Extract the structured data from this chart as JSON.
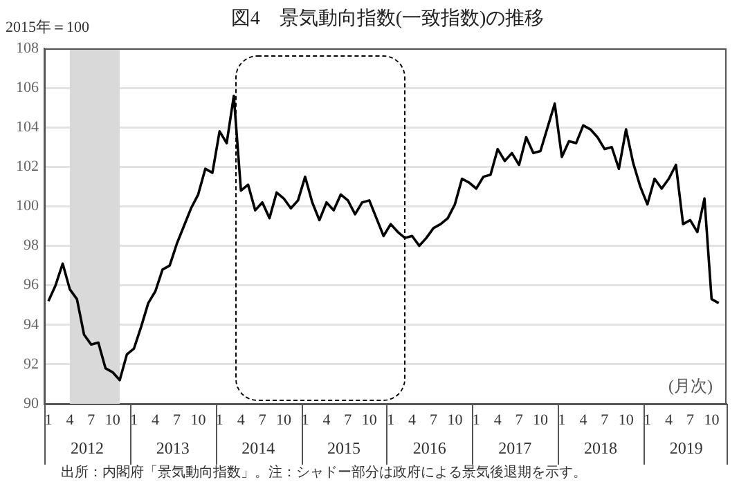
{
  "chart_data": {
    "type": "line",
    "title": "図4　景気動向指数(一致指数)の推移",
    "ylabel": "2015年＝100",
    "xlabel": "(月次)",
    "annotations": [
      "出所：内閣府「景気動向指数」。注：シャドー部分は政府による景気後退期を示す。"
    ],
    "x": [
      "2012-01",
      "2012-02",
      "2012-03",
      "2012-04",
      "2012-05",
      "2012-06",
      "2012-07",
      "2012-08",
      "2012-09",
      "2012-10",
      "2012-11",
      "2012-12",
      "2013-01",
      "2013-02",
      "2013-03",
      "2013-04",
      "2013-05",
      "2013-06",
      "2013-07",
      "2013-08",
      "2013-09",
      "2013-10",
      "2013-11",
      "2013-12",
      "2014-01",
      "2014-02",
      "2014-03",
      "2014-04",
      "2014-05",
      "2014-06",
      "2014-07",
      "2014-08",
      "2014-09",
      "2014-10",
      "2014-11",
      "2014-12",
      "2015-01",
      "2015-02",
      "2015-03",
      "2015-04",
      "2015-05",
      "2015-06",
      "2015-07",
      "2015-08",
      "2015-09",
      "2015-10",
      "2015-11",
      "2015-12",
      "2016-01",
      "2016-02",
      "2016-03",
      "2016-04",
      "2016-05",
      "2016-06",
      "2016-07",
      "2016-08",
      "2016-09",
      "2016-10",
      "2016-11",
      "2016-12",
      "2017-01",
      "2017-02",
      "2017-03",
      "2017-04",
      "2017-05",
      "2017-06",
      "2017-07",
      "2017-08",
      "2017-09",
      "2017-10",
      "2017-11",
      "2017-12",
      "2018-01",
      "2018-02",
      "2018-03",
      "2018-04",
      "2018-05",
      "2018-06",
      "2018-07",
      "2018-08",
      "2018-09",
      "2018-10",
      "2018-11",
      "2018-12",
      "2019-01",
      "2019-02",
      "2019-03",
      "2019-04",
      "2019-05",
      "2019-06",
      "2019-07",
      "2019-08",
      "2019-09",
      "2019-10",
      "2019-11"
    ],
    "series": [
      {
        "color": "#000000",
        "values": [
          95.2,
          96.0,
          97.1,
          95.8,
          95.3,
          93.5,
          93.0,
          93.1,
          91.8,
          91.6,
          91.2,
          92.5,
          92.8,
          93.9,
          95.1,
          95.7,
          96.8,
          97.0,
          98.1,
          99.0,
          99.9,
          100.6,
          101.9,
          101.7,
          103.8,
          103.2,
          105.6,
          100.8,
          101.1,
          99.8,
          100.2,
          99.4,
          100.7,
          100.4,
          99.9,
          100.3,
          101.5,
          100.2,
          99.3,
          100.2,
          99.8,
          100.6,
          100.3,
          99.6,
          100.2,
          100.3,
          99.4,
          98.5,
          99.1,
          98.7,
          98.4,
          98.5,
          98.0,
          98.4,
          98.9,
          99.1,
          99.4,
          100.1,
          101.4,
          101.2,
          100.9,
          101.5,
          101.6,
          102.9,
          102.3,
          102.7,
          102.1,
          103.5,
          102.7,
          102.8,
          104.0,
          105.2,
          102.5,
          103.3,
          103.2,
          104.1,
          103.9,
          103.5,
          102.9,
          103.0,
          101.9,
          103.9,
          102.2,
          101.0,
          100.1,
          101.4,
          100.9,
          101.4,
          102.1,
          99.1,
          99.3,
          98.7,
          100.4,
          95.3,
          95.1
        ]
      }
    ],
    "xlim": [
      "2011-12-14",
      "2019-12-04"
    ],
    "x2lim": [
      "2011-12-14",
      "2019-12-04"
    ],
    "x2ticks": [
      {
        "value": "2012-06-14",
        "label": "2012"
      },
      {
        "value": "2013-06-14",
        "label": "2013"
      },
      {
        "value": "2014-06-14",
        "label": "2014"
      },
      {
        "value": "2015-06-14",
        "label": "2015"
      },
      {
        "value": "2016-06-14",
        "label": "2016"
      },
      {
        "value": "2017-06-14",
        "label": "2017"
      },
      {
        "value": "2018-06-14",
        "label": "2018"
      },
      {
        "value": "2019-06-14",
        "label": "2019"
      }
    ],
    "xticks": [
      {
        "value": "2012-01",
        "label": "1"
      },
      {
        "value": "2012-04",
        "label": "4"
      },
      {
        "value": "2012-07",
        "label": "7"
      },
      {
        "value": "2012-10",
        "label": "10"
      },
      {
        "value": "2013-01",
        "label": "1"
      },
      {
        "value": "2013-04",
        "label": "4"
      },
      {
        "value": "2013-07",
        "label": "7"
      },
      {
        "value": "2013-10",
        "label": "10"
      },
      {
        "value": "2014-01",
        "label": "1"
      },
      {
        "value": "2014-04",
        "label": "4"
      },
      {
        "value": "2014-07",
        "label": "7"
      },
      {
        "value": "2014-10",
        "label": "10"
      },
      {
        "value": "2015-01",
        "label": "1"
      },
      {
        "value": "2015-04",
        "label": "4"
      },
      {
        "value": "2015-07",
        "label": "7"
      },
      {
        "value": "2015-10",
        "label": "10"
      },
      {
        "value": "2016-01",
        "label": "1"
      },
      {
        "value": "2016-04",
        "label": "4"
      },
      {
        "value": "2016-07",
        "label": "7"
      },
      {
        "value": "2016-10",
        "label": "10"
      },
      {
        "value": "2017-01",
        "label": "1"
      },
      {
        "value": "2017-04",
        "label": "4"
      },
      {
        "value": "2017-07",
        "label": "7"
      },
      {
        "value": "2017-10",
        "label": "10"
      },
      {
        "value": "2018-01",
        "label": "1"
      },
      {
        "value": "2018-04",
        "label": "4"
      },
      {
        "value": "2018-07",
        "label": "7"
      },
      {
        "value": "2018-10",
        "label": "10"
      },
      {
        "value": "2019-01",
        "label": "1"
      },
      {
        "value": "2019-04",
        "label": "4"
      },
      {
        "value": "2019-07",
        "label": "7"
      },
      {
        "value": "2019-10",
        "label": "10"
      }
    ],
    "ylim": [
      90,
      108
    ],
    "yticks": [
      90,
      92,
      94,
      96,
      98,
      100,
      102,
      104,
      106,
      108
    ],
    "bands": [
      {
        "axis": "x",
        "from": "2012-04",
        "to": "2012-11",
        "color": "#d9d9d9"
      }
    ],
    "grid": "y",
    "line_style": "solid",
    "marker": "none",
    "legend": false
  }
}
